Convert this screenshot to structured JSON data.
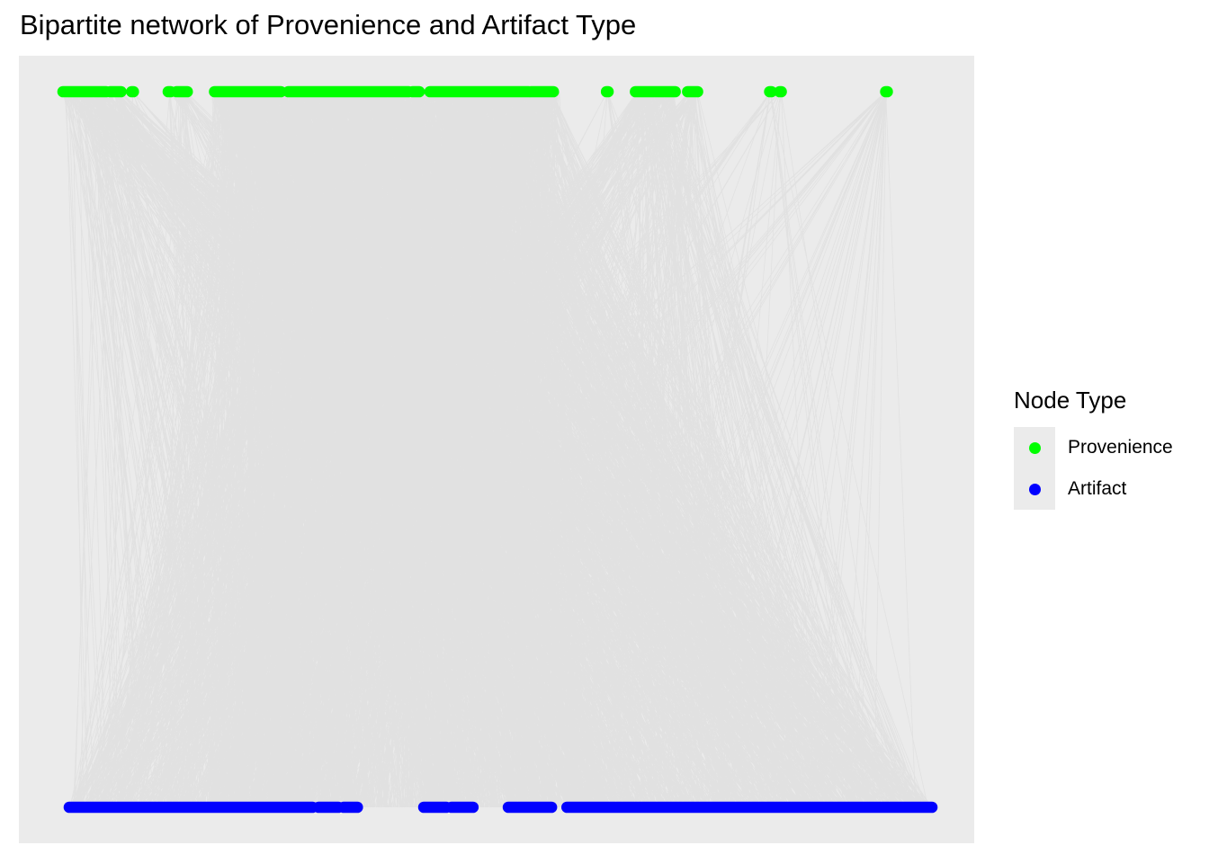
{
  "title": "Bipartite network of Provenience and Artifact Type",
  "colors": {
    "panel": "#ebebeb",
    "edge": "#bebebe",
    "provenience": "#00ff00",
    "artifact": "#0000ff"
  },
  "chart_data": {
    "type": "bipartite-network",
    "layout": "two-row",
    "grid": false,
    "legend": {
      "title": "Node Type",
      "position": "right",
      "entries": [
        {
          "label": "Provenience",
          "color": "#00ff00"
        },
        {
          "label": "Artifact",
          "color": "#0000ff"
        }
      ]
    },
    "node_groups": {
      "provenience": [
        {
          "from": 0.0,
          "to": 0.052
        },
        {
          "from": 0.057,
          "to": 0.07
        },
        {
          "from": 0.083,
          "to": 0.085
        },
        {
          "from": 0.127,
          "to": 0.13
        },
        {
          "from": 0.137,
          "to": 0.15
        },
        {
          "from": 0.183,
          "to": 0.263
        },
        {
          "from": 0.272,
          "to": 0.417
        },
        {
          "from": 0.422,
          "to": 0.43
        },
        {
          "from": 0.443,
          "to": 0.562
        },
        {
          "from": 0.565,
          "to": 0.592
        },
        {
          "from": 0.656,
          "to": 0.658
        },
        {
          "from": 0.691,
          "to": 0.739
        },
        {
          "from": 0.754,
          "to": 0.766
        },
        {
          "from": 0.853,
          "to": 0.855
        },
        {
          "from": 0.865,
          "to": 0.867
        },
        {
          "from": 0.993,
          "to": 0.995
        }
      ],
      "artifact": [
        {
          "from": 0.0,
          "to": 0.282
        },
        {
          "from": 0.289,
          "to": 0.312
        },
        {
          "from": 0.318,
          "to": 0.334
        },
        {
          "from": 0.411,
          "to": 0.437
        },
        {
          "from": 0.443,
          "to": 0.468
        },
        {
          "from": 0.509,
          "to": 0.559
        },
        {
          "from": 0.577,
          "to": 1.0
        }
      ]
    }
  }
}
